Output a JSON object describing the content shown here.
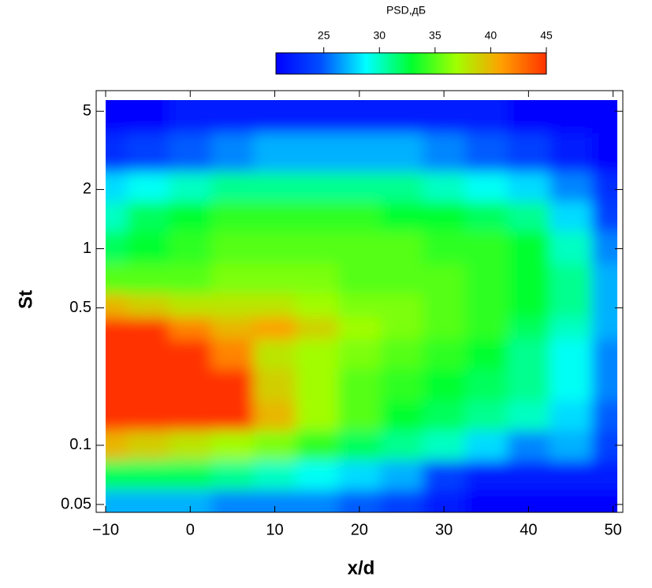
{
  "chart_data": {
    "type": "heatmap",
    "xlabel": "x/d",
    "ylabel": "St",
    "colorbar_title": "PSD,дБ",
    "x": [
      -10,
      -5,
      0,
      5,
      10,
      15,
      20,
      25,
      30,
      35,
      40,
      45,
      50
    ],
    "y": [
      5,
      3,
      2,
      1.5,
      1,
      0.7,
      0.5,
      0.4,
      0.3,
      0.2,
      0.14,
      0.1,
      0.07,
      0.05
    ],
    "z": [
      [
        21,
        21,
        22,
        22,
        22,
        22,
        22,
        22,
        22,
        22,
        21,
        21,
        21
      ],
      [
        23,
        24,
        25,
        26,
        27,
        27,
        27,
        27,
        26,
        25,
        24,
        22,
        21
      ],
      [
        28,
        29,
        30,
        31,
        31,
        31,
        31,
        31,
        30,
        29,
        28,
        26,
        23
      ],
      [
        30,
        32,
        33,
        34,
        34,
        34,
        34,
        33,
        33,
        32,
        31,
        28,
        24
      ],
      [
        32,
        33,
        34,
        35,
        35,
        35,
        35,
        35,
        34,
        34,
        33,
        30,
        26
      ],
      [
        35,
        35,
        35,
        36,
        36,
        36,
        35,
        35,
        35,
        34,
        33,
        31,
        27
      ],
      [
        40,
        39,
        38,
        38,
        38,
        37,
        36,
        36,
        35,
        34,
        33,
        31,
        27
      ],
      [
        46,
        45,
        42,
        40,
        41,
        39,
        37,
        36,
        35,
        34,
        32,
        30,
        27
      ],
      [
        47,
        47,
        46,
        42,
        38,
        37,
        36,
        35,
        34,
        33,
        31,
        29,
        26
      ],
      [
        47,
        47,
        47,
        45,
        39,
        37,
        35,
        34,
        33,
        32,
        31,
        29,
        26
      ],
      [
        47,
        47,
        47,
        46,
        40,
        37,
        35,
        33,
        32,
        31,
        30,
        28,
        25
      ],
      [
        40,
        39,
        38,
        37,
        36,
        34,
        32,
        31,
        30,
        28,
        26,
        27,
        24
      ],
      [
        32,
        32,
        32,
        31,
        30,
        29,
        28,
        27,
        24,
        22,
        22,
        22,
        22
      ],
      [
        27,
        27,
        27,
        26,
        26,
        26,
        25,
        24,
        22,
        21,
        21,
        21,
        21
      ]
    ],
    "xlim": [
      -10,
      50.5
    ],
    "xticks": [
      {
        "value": -10,
        "label": "−10"
      },
      0,
      10,
      20,
      30,
      40,
      50
    ],
    "ylim": [
      0.0456,
      5.7
    ],
    "ylog": true,
    "yticks": [
      0.05,
      0.1,
      0.5,
      1,
      2,
      5
    ],
    "zlim": [
      20.7,
      45
    ],
    "zticks": [
      25,
      30,
      35,
      40,
      45
    ],
    "colormap": [
      "#0000ff",
      "#0050ff",
      "#00ffff",
      "#00ff30",
      "#a0ff00",
      "#ffa000",
      "#ff3300"
    ]
  }
}
